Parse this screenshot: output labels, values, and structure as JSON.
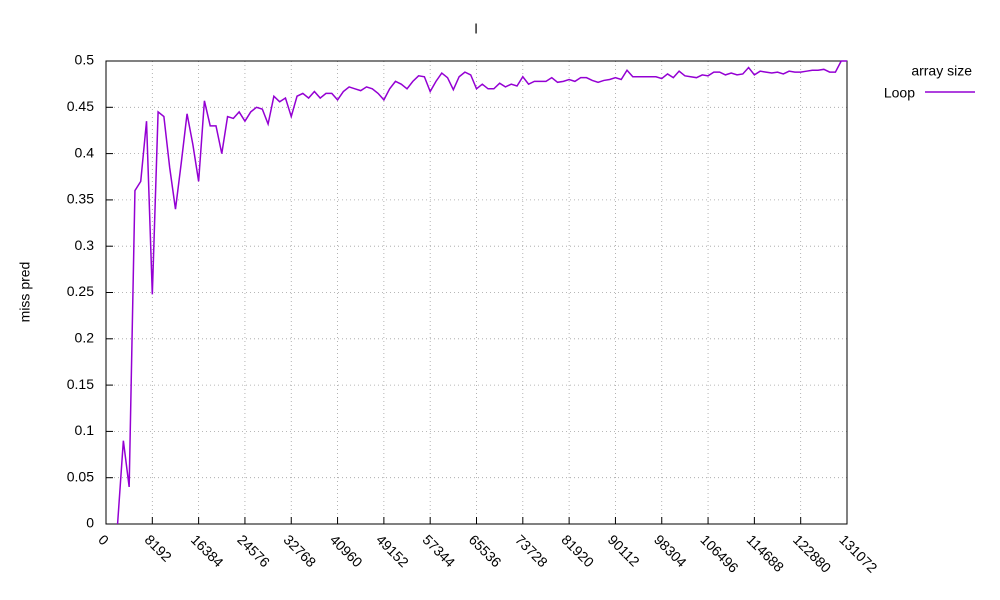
{
  "chart_data": {
    "type": "line",
    "title": "l",
    "y_label": "miss pred",
    "legend_title": "array size",
    "legend": "top-right-outside",
    "grid": true,
    "x": [
      2048,
      3072,
      4096,
      5120,
      6144,
      7168,
      8192,
      9216,
      10240,
      11264,
      12288,
      13312,
      14336,
      15360,
      16384,
      17408,
      18432,
      19456,
      20480,
      21504,
      22528,
      23552,
      24576,
      25600,
      26624,
      27648,
      28672,
      29696,
      30720,
      31744,
      32768,
      33792,
      34816,
      35840,
      36864,
      37888,
      38912,
      39936,
      40960,
      41984,
      43008,
      44032,
      45056,
      46080,
      47104,
      48128,
      49152,
      50176,
      51200,
      52224,
      53248,
      54272,
      55296,
      56320,
      57344,
      58368,
      59392,
      60416,
      61440,
      62464,
      63488,
      64512,
      65536,
      66560,
      67584,
      68608,
      69632,
      70656,
      71680,
      72704,
      73728,
      74752,
      75776,
      76800,
      77824,
      78848,
      79872,
      80896,
      81920,
      82944,
      83968,
      84992,
      86016,
      87040,
      88064,
      89088,
      90112,
      91136,
      92160,
      93184,
      94208,
      95232,
      96256,
      97280,
      98304,
      99328,
      100352,
      101376,
      102400,
      103424,
      104448,
      105472,
      106496,
      107520,
      108544,
      109568,
      110592,
      111616,
      112640,
      113664,
      114688,
      115712,
      116736,
      117760,
      118784,
      119808,
      120832,
      121856,
      122880,
      123904,
      124928,
      125952,
      126976,
      128000,
      129024,
      130048,
      131072
    ],
    "series": [
      {
        "name": "Loop",
        "color": "#9400d3",
        "values": [
          0,
          0.09,
          0.04,
          0.36,
          0.37,
          0.435,
          0.248,
          0.445,
          0.44,
          0.385,
          0.34,
          0.39,
          0.443,
          0.41,
          0.37,
          0.457,
          0.43,
          0.43,
          0.4,
          0.44,
          0.438,
          0.445,
          0.435,
          0.445,
          0.45,
          0.448,
          0.432,
          0.462,
          0.456,
          0.46,
          0.44,
          0.462,
          0.465,
          0.46,
          0.467,
          0.46,
          0.465,
          0.465,
          0.458,
          0.467,
          0.472,
          0.47,
          0.468,
          0.472,
          0.47,
          0.465,
          0.458,
          0.47,
          0.478,
          0.475,
          0.47,
          0.478,
          0.484,
          0.483,
          0.467,
          0.478,
          0.487,
          0.482,
          0.469,
          0.483,
          0.488,
          0.485,
          0.47,
          0.475,
          0.47,
          0.47,
          0.476,
          0.472,
          0.475,
          0.473,
          0.483,
          0.475,
          0.478,
          0.478,
          0.478,
          0.482,
          0.477,
          0.478,
          0.48,
          0.478,
          0.482,
          0.482,
          0.479,
          0.477,
          0.479,
          0.48,
          0.482,
          0.48,
          0.49,
          0.483,
          0.483,
          0.483,
          0.483,
          0.483,
          0.481,
          0.486,
          0.482,
          0.489,
          0.484,
          0.483,
          0.482,
          0.485,
          0.484,
          0.488,
          0.488,
          0.485,
          0.487,
          0.485,
          0.486,
          0.493,
          0.485,
          0.489,
          0.488,
          0.487,
          0.488,
          0.486,
          0.489,
          0.488,
          0.488,
          0.489,
          0.49,
          0.49,
          0.491,
          0.488,
          0.488,
          0.5,
          0.5
        ]
      }
    ],
    "xlim": [
      0,
      131072
    ],
    "xticks": [
      0,
      8192,
      16384,
      24576,
      32768,
      40960,
      49152,
      57344,
      65536,
      73728,
      81920,
      90112,
      98304,
      106496,
      114688,
      122880,
      131072
    ],
    "ylim": [
      0,
      0.5
    ],
    "yticks": [
      0,
      0.05,
      0.1,
      0.15,
      0.2,
      0.25,
      0.3,
      0.35,
      0.4,
      0.45,
      0.5
    ]
  }
}
